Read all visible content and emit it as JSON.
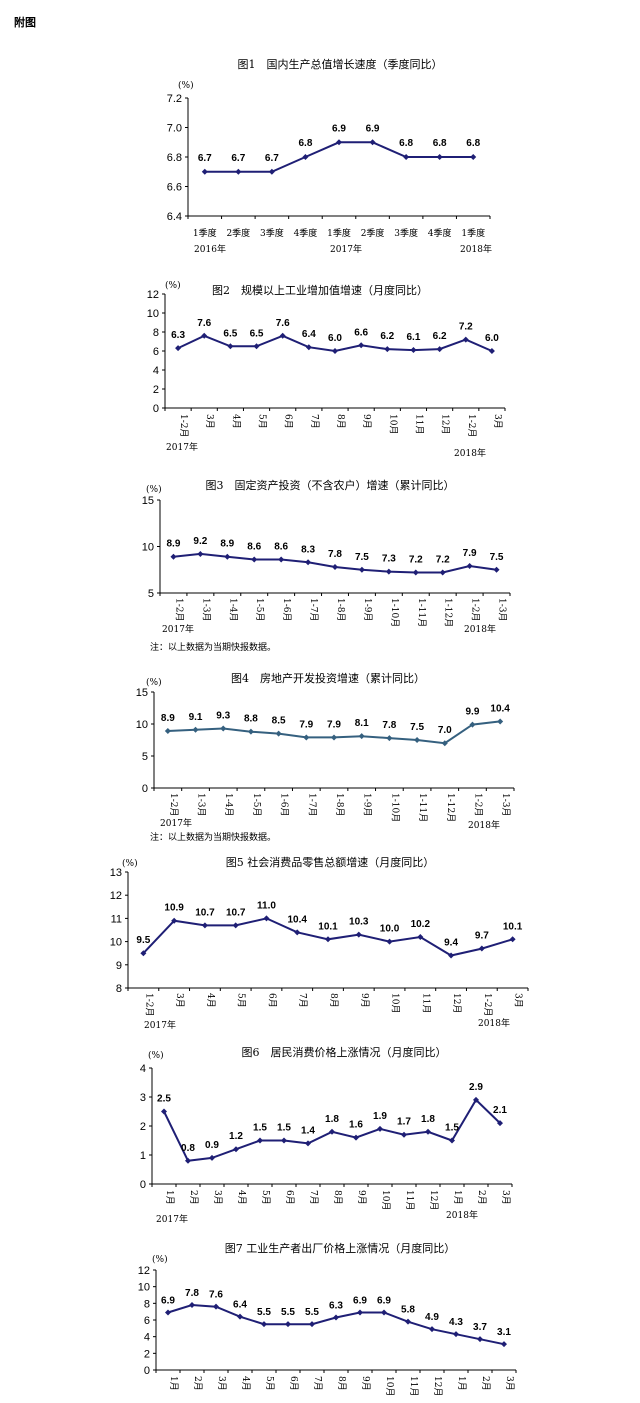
{
  "page_label": "附图",
  "chart_data": [
    {
      "type": "line",
      "title": "图1　国内生产总值增长速度（季度同比）",
      "unit": "(%)",
      "categories": [
        "1季度",
        "2季度",
        "3季度",
        "4季度",
        "1季度",
        "2季度",
        "3季度",
        "4季度",
        "1季度"
      ],
      "values": [
        6.7,
        6.7,
        6.7,
        6.8,
        6.9,
        6.9,
        6.8,
        6.8,
        6.8
      ],
      "value_labels": [
        "6.7",
        "6.7",
        "6.7",
        "6.8",
        "6.9",
        "6.9",
        "6.8",
        "6.8",
        "6.8"
      ],
      "yticks": [
        "6.4",
        "6.6",
        "6.8",
        "7.0",
        "7.2"
      ],
      "ylim": [
        6.4,
        7.2
      ],
      "year_labels": [
        "2016年",
        "2017年",
        "2018年"
      ],
      "note": "",
      "color": "#1f1f75"
    },
    {
      "type": "line",
      "title": "图2　规模以上工业增加值增速（月度同比）",
      "unit": "(%)",
      "categories": [
        "1-2月",
        "3月",
        "4月",
        "5月",
        "6月",
        "7月",
        "8月",
        "9月",
        "10月",
        "11月",
        "12月",
        "1-2月",
        "3月"
      ],
      "values": [
        6.3,
        7.6,
        6.5,
        6.5,
        7.6,
        6.4,
        6.0,
        6.6,
        6.2,
        6.1,
        6.2,
        7.2,
        6.0
      ],
      "value_labels": [
        "6.3",
        "7.6",
        "6.5",
        "6.5",
        "7.6",
        "6.4",
        "6.0",
        "6.6",
        "6.2",
        "6.1",
        "6.2",
        "7.2",
        "6.0"
      ],
      "yticks": [
        "0",
        "2",
        "4",
        "6",
        "8",
        "10",
        "12"
      ],
      "ylim": [
        0,
        12
      ],
      "year_labels": [
        "2017年",
        "2018年"
      ],
      "note": "",
      "color": "#1f1f75"
    },
    {
      "type": "line",
      "title": "图3　固定资产投资（不含农户）增速（累计同比）",
      "unit": "(%)",
      "categories": [
        "1-2月",
        "1-3月",
        "1-4月",
        "1-5月",
        "1-6月",
        "1-7月",
        "1-8月",
        "1-9月",
        "1-10月",
        "1-11月",
        "1-12月",
        "1-2月",
        "1-3月"
      ],
      "values": [
        8.9,
        9.2,
        8.9,
        8.6,
        8.6,
        8.3,
        7.8,
        7.5,
        7.3,
        7.2,
        7.2,
        7.9,
        7.5
      ],
      "value_labels": [
        "8.9",
        "9.2",
        "8.9",
        "8.6",
        "8.6",
        "8.3",
        "7.8",
        "7.5",
        "7.3",
        "7.2",
        "7.2",
        "7.9",
        "7.5"
      ],
      "yticks": [
        "5",
        "10",
        "15"
      ],
      "ylim": [
        5,
        15
      ],
      "year_labels": [
        "2017年",
        "2018年"
      ],
      "note": "注：以上数据为当期快报数据。",
      "color": "#1f1f75"
    },
    {
      "type": "line",
      "title": "图4　房地产开发投资增速（累计同比）",
      "unit": "(%)",
      "categories": [
        "1-2月",
        "1-3月",
        "1-4月",
        "1-5月",
        "1-6月",
        "1-7月",
        "1-8月",
        "1-9月",
        "1-10月",
        "1-11月",
        "1-12月",
        "1-2月",
        "1-3月"
      ],
      "values": [
        8.9,
        9.1,
        9.3,
        8.8,
        8.5,
        7.9,
        7.9,
        8.1,
        7.8,
        7.5,
        7.0,
        9.9,
        10.4
      ],
      "value_labels": [
        "8.9",
        "9.1",
        "9.3",
        "8.8",
        "8.5",
        "7.9",
        "7.9",
        "8.1",
        "7.8",
        "7.5",
        "7.0",
        "9.9",
        "10.4"
      ],
      "yticks": [
        "0",
        "5",
        "10",
        "15"
      ],
      "ylim": [
        0,
        15
      ],
      "year_labels": [
        "2017年",
        "2018年"
      ],
      "note": "注：以上数据为当期快报数据。",
      "color": "#35607f"
    },
    {
      "type": "line",
      "title": "图5 社会消费品零售总额增速（月度同比）",
      "unit": "(%)",
      "categories": [
        "1-2月",
        "3月",
        "4月",
        "5月",
        "6月",
        "7月",
        "8月",
        "9月",
        "10月",
        "11月",
        "12月",
        "1-2月",
        "3月"
      ],
      "values": [
        9.5,
        10.9,
        10.7,
        10.7,
        11.0,
        10.4,
        10.1,
        10.3,
        10.0,
        10.2,
        9.4,
        9.7,
        10.1
      ],
      "value_labels": [
        "9.5",
        "10.9",
        "10.7",
        "10.7",
        "11.0",
        "10.4",
        "10.1",
        "10.3",
        "10.0",
        "10.2",
        "9.4",
        "9.7",
        "10.1"
      ],
      "yticks": [
        "8",
        "9",
        "10",
        "11",
        "12",
        "13"
      ],
      "ylim": [
        8,
        13
      ],
      "year_labels": [
        "2017年",
        "2018年"
      ],
      "note": "",
      "color": "#1f1f75"
    },
    {
      "type": "line",
      "title": "图6　居民消费价格上涨情况（月度同比）",
      "unit": "(%)",
      "categories": [
        "1月",
        "2月",
        "3月",
        "4月",
        "5月",
        "6月",
        "7月",
        "8月",
        "9月",
        "10月",
        "11月",
        "12月",
        "1月",
        "2月",
        "3月"
      ],
      "values": [
        2.5,
        0.8,
        0.9,
        1.2,
        1.5,
        1.5,
        1.4,
        1.8,
        1.6,
        1.9,
        1.7,
        1.8,
        1.5,
        2.9,
        2.1
      ],
      "value_labels": [
        "2.5",
        "0.8",
        "0.9",
        "1.2",
        "1.5",
        "1.5",
        "1.4",
        "1.8",
        "1.6",
        "1.9",
        "1.7",
        "1.8",
        "1.5",
        "2.9",
        "2.1"
      ],
      "yticks": [
        "0",
        "1",
        "2",
        "3",
        "4"
      ],
      "ylim": [
        0,
        4
      ],
      "year_labels": [
        "2017年",
        "2018年"
      ],
      "note": "",
      "color": "#1f1f75"
    },
    {
      "type": "line",
      "title": "图7 工业生产者出厂价格上涨情况（月度同比）",
      "unit": "(%)",
      "categories": [
        "1月",
        "2月",
        "3月",
        "4月",
        "5月",
        "6月",
        "7月",
        "8月",
        "9月",
        "10月",
        "11月",
        "12月",
        "1月",
        "2月",
        "3月"
      ],
      "values": [
        6.9,
        7.8,
        7.6,
        6.4,
        5.5,
        5.5,
        5.5,
        6.3,
        6.9,
        6.9,
        5.8,
        4.9,
        4.3,
        3.7,
        3.1
      ],
      "value_labels": [
        "6.9",
        "7.8",
        "7.6",
        "6.4",
        "5.5",
        "5.5",
        "5.5",
        "6.3",
        "6.9",
        "6.9",
        "5.8",
        "4.9",
        "4.3",
        "3.7",
        "3.1"
      ],
      "yticks": [
        "0",
        "2",
        "4",
        "6",
        "8",
        "10",
        "12"
      ],
      "ylim": [
        0,
        12
      ],
      "year_labels": [],
      "note": "",
      "color": "#1f1f75"
    }
  ]
}
